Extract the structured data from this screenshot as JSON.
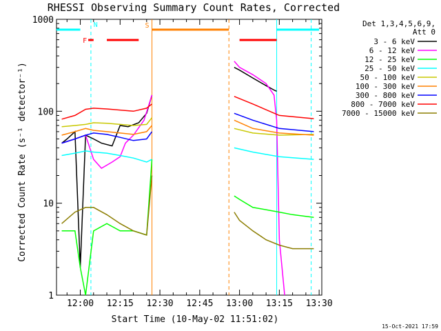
{
  "chart_data": {
    "type": "line",
    "title": "RHESSI Observing Summary Count Rates, Corrected",
    "xlabel": "Start Time (10-May-02 11:51:02)",
    "ylabel": "Corrected Count Rate (s⁻¹ detector⁻¹)",
    "yscale": "log",
    "ylim": [
      1,
      1000
    ],
    "xlim": [
      "11:51:02",
      "13:31:00"
    ],
    "xticks": [
      "12:00",
      "12:15",
      "12:30",
      "12:45",
      "13:00",
      "13:15",
      "13:30"
    ],
    "yticks": [
      "1",
      "10",
      "100",
      "1000"
    ],
    "legend_header": [
      "Det 1,3,4,5,6,9,",
      "Att 0"
    ],
    "legend_position": "right",
    "series": [
      {
        "name": "3 - 6 keV",
        "color": "#000000",
        "x": [
          "11:53",
          "11:55",
          "11:58",
          "12:00",
          "12:02",
          "12:05",
          "12:08",
          "12:12",
          "12:15",
          "12:18",
          "12:22",
          "12:25",
          "12:27",
          "12:58",
          "13:00",
          "13:05",
          "13:10",
          "13:13",
          "13:14"
        ],
        "y": [
          45,
          50,
          60,
          2,
          55,
          50,
          45,
          42,
          70,
          68,
          75,
          95,
          150,
          300,
          280,
          230,
          190,
          170,
          165
        ]
      },
      {
        "name": "6 - 12 keV",
        "color": "#ff00ff",
        "x": [
          "11:53",
          "11:58",
          "12:02",
          "12:05",
          "12:08",
          "12:12",
          "12:15",
          "12:17",
          "12:20",
          "12:24",
          "12:27",
          "12:58",
          "13:00",
          "13:05",
          "13:10",
          "13:13",
          "13:14",
          "13:15",
          "13:17"
        ],
        "y": [
          45,
          50,
          55,
          30,
          24,
          28,
          32,
          45,
          55,
          80,
          150,
          350,
          300,
          250,
          200,
          150,
          80,
          4,
          1
        ]
      },
      {
        "name": "12 - 25 keV",
        "color": "#00ff00",
        "x": [
          "11:53",
          "11:58",
          "12:00",
          "12:02",
          "12:05",
          "12:10",
          "12:15",
          "12:20",
          "12:25",
          "12:27",
          "12:58",
          "13:00",
          "13:05",
          "13:10",
          "13:15",
          "13:20",
          "13:28"
        ],
        "y": [
          5,
          5,
          2,
          1,
          5,
          6,
          5,
          5,
          4.5,
          30,
          12,
          11,
          9,
          8.5,
          8,
          7.5,
          7
        ]
      },
      {
        "name": "25 - 50 keV",
        "color": "#00ffff",
        "x": [
          "11:53",
          "11:58",
          "12:02",
          "12:05",
          "12:10",
          "12:15",
          "12:20",
          "12:25",
          "12:27",
          "12:58",
          "13:05",
          "13:15",
          "13:28"
        ],
        "y": [
          33,
          35,
          37,
          36,
          35,
          33,
          31,
          28,
          30,
          40,
          36,
          32,
          30
        ]
      },
      {
        "name": "50 - 100 keV",
        "color": "#c8c800",
        "x": [
          "11:53",
          "11:58",
          "12:02",
          "12:05",
          "12:10",
          "12:15",
          "12:20",
          "12:25",
          "12:27",
          "12:58",
          "13:05",
          "13:15",
          "13:28"
        ],
        "y": [
          68,
          70,
          72,
          75,
          74,
          72,
          70,
          72,
          85,
          65,
          58,
          55,
          56
        ]
      },
      {
        "name": "100 - 300 keV",
        "color": "#ff8000",
        "x": [
          "11:53",
          "11:58",
          "12:02",
          "12:05",
          "12:10",
          "12:15",
          "12:20",
          "12:25",
          "12:27",
          "12:58",
          "13:05",
          "13:15",
          "13:28"
        ],
        "y": [
          55,
          60,
          65,
          62,
          60,
          58,
          56,
          60,
          70,
          80,
          65,
          58,
          55
        ]
      },
      {
        "name": "300 - 800 keV",
        "color": "#0000ff",
        "x": [
          "11:53",
          "11:58",
          "12:02",
          "12:05",
          "12:10",
          "12:15",
          "12:20",
          "12:25",
          "12:27",
          "12:58",
          "13:05",
          "13:15",
          "13:28"
        ],
        "y": [
          45,
          50,
          55,
          58,
          56,
          52,
          48,
          50,
          60,
          95,
          80,
          65,
          60
        ]
      },
      {
        "name": "800 - 7000 keV",
        "color": "#ff0000",
        "x": [
          "11:53",
          "11:58",
          "12:02",
          "12:05",
          "12:10",
          "12:15",
          "12:20",
          "12:25",
          "12:27",
          "12:58",
          "13:05",
          "13:15",
          "13:28"
        ],
        "y": [
          82,
          90,
          105,
          108,
          106,
          103,
          100,
          108,
          120,
          145,
          120,
          90,
          83
        ]
      },
      {
        "name": "7000 - 15000 keV",
        "color": "#8b7d00",
        "x": [
          "11:53",
          "11:58",
          "12:02",
          "12:05",
          "12:10",
          "12:15",
          "12:20",
          "12:25",
          "12:27",
          "12:58",
          "13:00",
          "13:05",
          "13:10",
          "13:15",
          "13:20",
          "13:28"
        ],
        "y": [
          6,
          8,
          9,
          9,
          7.5,
          6,
          5,
          4.5,
          20,
          8,
          6.5,
          5,
          4,
          3.5,
          3.2,
          3.2
        ]
      }
    ],
    "annotations": {
      "flags": [
        {
          "label": "N",
          "color": "#00ffff",
          "row": "top",
          "segments": [
            [
              "11:51",
              "12:00"
            ],
            [
              "13:14",
              "13:30"
            ]
          ]
        },
        {
          "label": "F",
          "color": "#ff0000",
          "row": "mid",
          "segments": [
            [
              "12:03",
              "12:05"
            ],
            [
              "12:10",
              "12:22"
            ],
            [
              "13:00",
              "13:14"
            ]
          ]
        },
        {
          "label": "S",
          "color": "#ff8000",
          "row": "top",
          "segments": [
            [
              "12:27",
              "12:56"
            ]
          ]
        }
      ],
      "vertical_lines": [
        {
          "time": "12:04",
          "color": "#00ffff",
          "style": "dashed"
        },
        {
          "time": "12:27",
          "color": "#ff8000",
          "style": "solid"
        },
        {
          "time": "12:56",
          "color": "#ff8000",
          "style": "dashed"
        },
        {
          "time": "13:14",
          "color": "#00ffff",
          "style": "solid"
        },
        {
          "time": "13:27",
          "color": "#00ffff",
          "style": "dashed"
        }
      ],
      "gaps": [
        [
          "12:28",
          "12:57"
        ]
      ]
    },
    "footer": "15-Oct-2021 17:59"
  }
}
